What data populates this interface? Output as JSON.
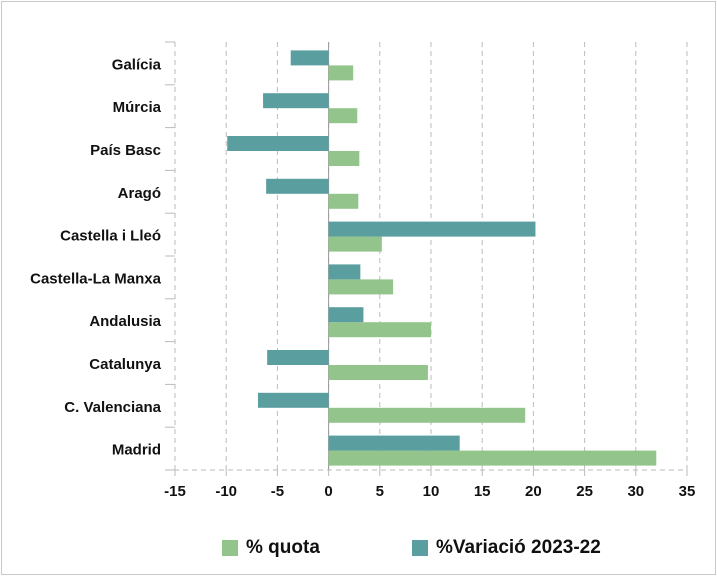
{
  "chart_data": {
    "type": "bar",
    "orientation": "horizontal",
    "categories": [
      "Galícia",
      "Múrcia",
      "País Basc",
      "Aragó",
      "Castella i Lleó",
      "Castella-La Manxa",
      "Andalusia",
      "Catalunya",
      "C. Valenciana",
      "Madrid"
    ],
    "series": [
      {
        "name": "% quota",
        "color": "#93c48b",
        "values": [
          2.4,
          2.8,
          3.0,
          2.9,
          5.2,
          6.3,
          10.0,
          9.7,
          19.2,
          32.0
        ]
      },
      {
        "name": "%Variació 2023-22",
        "color": "#5b9ea0",
        "values": [
          -3.7,
          -6.4,
          -9.9,
          -6.1,
          20.2,
          3.1,
          3.4,
          -6.0,
          -6.9,
          12.8
        ]
      }
    ],
    "xlim": [
      -15,
      35
    ],
    "xticks": [
      -15,
      -10,
      -5,
      0,
      5,
      10,
      15,
      20,
      25,
      30,
      35
    ],
    "grid": true,
    "legend": "bottom"
  }
}
